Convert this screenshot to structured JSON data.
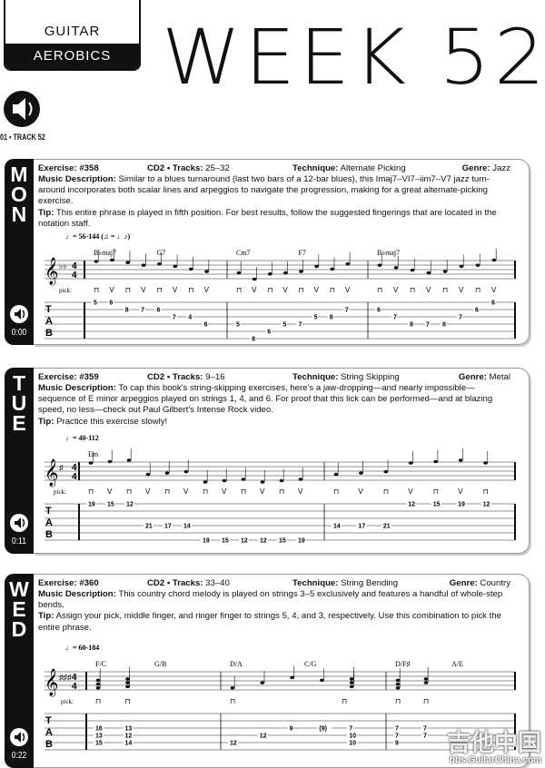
{
  "header": {
    "logo_top": "GUITAR",
    "logo_bottom": "AEROBICS",
    "title": "WEEK 52",
    "track": "01 • TRACK 52"
  },
  "labels": {
    "exercise": "Exercise:",
    "cd": "CD2 • Tracks:",
    "technique": "Technique:",
    "genre": "Genre:",
    "desc": "Music Description:",
    "tip": "Tip:",
    "pick": "pick:",
    "tab": [
      "T",
      "A",
      "B"
    ]
  },
  "sections": [
    {
      "day": "MON",
      "letters": [
        "M",
        "O",
        "N"
      ],
      "time": "0:00",
      "exercise": "#358",
      "tracks": "25–32",
      "technique": "Alternate Picking",
      "genre": "Jazz",
      "desc": "Similar to a blues turnaround (last two bars of a 12-bar blues), this Imaj7–VI7–iim7–V7 jazz turn-around incorporates both scalar lines and arpeggios to navigate the progression, making for a great alternate-picking exercise.",
      "tip": "This entire phrase is played in fifth position. For best results, follow the suggested fingerings that are located in the notation staff.",
      "tempo": "♩= 56-144  (♫ = ♩♪)",
      "key": "♭♭",
      "time_sig": [
        "4",
        "4"
      ],
      "chords": [
        {
          "label": "B♭maj7",
          "measure": 1,
          "beat": 1
        },
        {
          "label": "G7",
          "measure": 1,
          "beat": 3
        },
        {
          "label": "Cm7",
          "measure": 2,
          "beat": 1
        },
        {
          "label": "F7",
          "measure": 2,
          "beat": 3
        },
        {
          "label": "B♭maj7",
          "measure": 3,
          "beat": 1
        }
      ],
      "pick": [
        [
          "⊓",
          "V",
          "⊓",
          "V",
          "⊓",
          "V",
          "⊓",
          "V"
        ],
        [
          "⊓",
          "V",
          "⊓",
          "V",
          "⊓",
          "V",
          "⊓",
          "V"
        ],
        [
          "⊓",
          "V",
          "⊓",
          "V",
          "⊓",
          "V",
          "⊓",
          "V"
        ]
      ],
      "tab": [
        [
          [
            [
              "5",
              1
            ]
          ],
          [
            [
              "6",
              1
            ]
          ],
          [
            [
              "8",
              2
            ]
          ],
          [
            [
              "7",
              2
            ]
          ],
          [
            [
              "6",
              2
            ]
          ],
          [
            [
              "7",
              3
            ]
          ],
          [
            [
              "4",
              3
            ]
          ],
          [
            [
              "6",
              4
            ]
          ]
        ],
        [
          [
            [
              "5",
              4
            ]
          ],
          [
            [
              "8",
              6
            ]
          ],
          [
            [
              "6",
              5
            ]
          ],
          [
            [
              "5",
              4
            ]
          ],
          [
            [
              "7",
              4
            ]
          ],
          [
            [
              "5",
              3
            ]
          ],
          [
            [
              "8",
              3
            ]
          ],
          [
            [
              "7",
              2
            ]
          ]
        ],
        [
          [
            [
              "6",
              2
            ]
          ],
          [
            [
              "7",
              3
            ]
          ],
          [
            [
              "8",
              4
            ]
          ],
          [
            [
              "7",
              4
            ]
          ],
          [
            [
              "8",
              4
            ]
          ],
          [
            [
              "7",
              3
            ]
          ],
          [
            [
              "6",
              2
            ]
          ],
          [
            [
              "6",
              1
            ]
          ]
        ]
      ]
    },
    {
      "day": "TUE",
      "letters": [
        "T",
        "U",
        "E"
      ],
      "time": "0:11",
      "exercise": "#359",
      "tracks": "9–16",
      "technique": "String Skipping",
      "genre": "Metal",
      "desc": "To cap this book's string-skipping exercises, here's a jaw-dropping—and nearly impossible—sequence of E minor arpeggios played on strings 1, 4, and 6. For proof that this lick can be performed—and at blazing speed, no less—check out Paul Gilbert's Intense Rock video.",
      "tip": "Practice this exercise slowly!",
      "tempo": "♩= 40-112",
      "key": "♯",
      "time_sig": [
        "4",
        "4"
      ],
      "chords": [
        {
          "label": "Em",
          "measure": 1,
          "beat": 1
        }
      ],
      "pick": [
        [
          "⊓",
          "V",
          "⊓",
          "V",
          "⊓",
          "V",
          "⊓",
          "V",
          "⊓",
          "V",
          "⊓",
          "V"
        ],
        [
          "⊓",
          "V",
          "⊓",
          "V",
          "⊓",
          "V",
          "⊓"
        ]
      ],
      "tab": [
        [
          [
            [
              "19",
              1
            ]
          ],
          [
            [
              "15",
              1
            ]
          ],
          [
            [
              "12",
              1
            ]
          ],
          [
            [
              "21",
              4
            ]
          ],
          [
            [
              "17",
              4
            ]
          ],
          [
            [
              "14",
              4
            ]
          ],
          [
            [
              "19",
              6
            ]
          ],
          [
            [
              "15",
              6
            ]
          ],
          [
            [
              "12",
              6
            ]
          ],
          [
            [
              "12",
              6
            ]
          ],
          [
            [
              "15",
              6
            ]
          ],
          [
            [
              "19",
              6
            ]
          ]
        ],
        [
          [
            [
              "14",
              4
            ]
          ],
          [
            [
              "17",
              4
            ]
          ],
          [
            [
              "21",
              4
            ]
          ],
          [
            [
              "12",
              1
            ]
          ],
          [
            [
              "15",
              1
            ]
          ],
          [
            [
              "19",
              1
            ]
          ],
          [
            [
              "12",
              1
            ]
          ]
        ]
      ]
    },
    {
      "day": "WED",
      "letters": [
        "W",
        "E",
        "D"
      ],
      "time": "0:22",
      "exercise": "#360",
      "tracks": "33–40",
      "technique": "String Bending",
      "genre": "Country",
      "desc": "This country chord melody is played on strings 3–5 exclusively and features a handful of whole-step bends.",
      "tip": "Assign your pick, middle finger, and ringer finger to strings 5, 4, and 3, respectively. Use this combination to pick the entire phrase.",
      "tempo": "♩= 60-184",
      "key": "♯♯♯",
      "time_sig": [
        "4",
        "4"
      ],
      "chords": [
        {
          "label": "F/C",
          "measure": 1,
          "beat": 1
        },
        {
          "label": "G/B",
          "measure": 1,
          "beat": 3
        },
        {
          "label": "D/A",
          "measure": 2,
          "beat": 1
        },
        {
          "label": "C/G",
          "measure": 2,
          "beat": 3
        },
        {
          "label": "D/F♯",
          "measure": 3,
          "beat": 1
        },
        {
          "label": "A/E",
          "measure": 3,
          "beat": 3
        }
      ],
      "pick": [
        [
          "⊓",
          "⊓"
        ],
        [
          "⊓",
          "",
          "",
          "⊓"
        ],
        [
          "⊓",
          "⊓"
        ]
      ],
      "tab": [
        [
          [
            [
              "16",
              3
            ],
            [
              "13",
              4
            ],
            [
              "15",
              5
            ]
          ],
          [
            [
              "13",
              3
            ],
            [
              "12",
              4
            ],
            [
              "14",
              5
            ]
          ]
        ],
        [
          [
            [
              "12",
              5
            ]
          ],
          [
            [
              "12",
              4
            ]
          ],
          [
            [
              "9",
              3
            ]
          ],
          [
            [
              "(9)",
              3
            ],
            [
              "7",
              3
            ],
            [
              "10",
              4
            ],
            [
              "10",
              5
            ]
          ]
        ],
        [
          [
            [
              "7",
              3
            ],
            [
              "7",
              4
            ],
            [
              "9",
              5
            ]
          ],
          [
            [
              "7",
              3
            ],
            [
              "7",
              4
            ]
          ]
        ]
      ]
    }
  ],
  "watermark": {
    "text": "吉他中国",
    "url": "bbs.GuitarChina.com"
  }
}
